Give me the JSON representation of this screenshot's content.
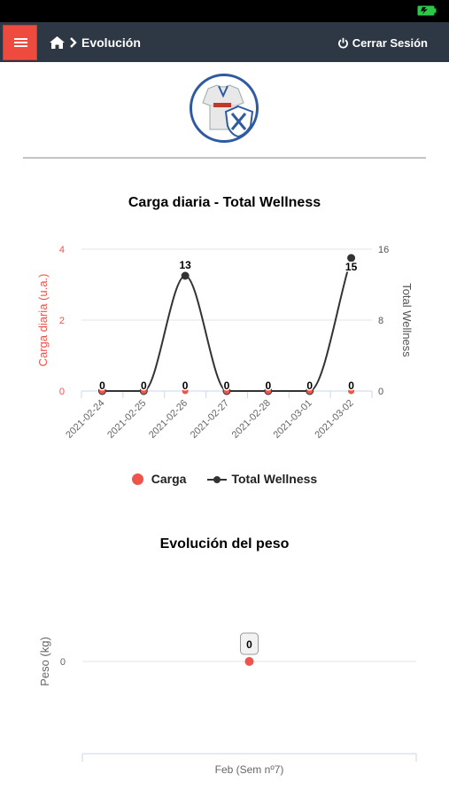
{
  "header": {
    "breadcrumb": "Evolución",
    "logout_label": "Cerrar Sesión"
  },
  "colors": {
    "navbar": "#2e3845",
    "menu_button": "#ee4b3e",
    "carga": "#f0534b",
    "wellness": "#333333"
  },
  "icons": [
    "menu-icon",
    "home-icon",
    "chevron-right-icon",
    "power-icon",
    "battery-icon"
  ],
  "charts": {
    "load_title": "Carga diaria - Total Wellness",
    "weight_title": "Evolución del peso"
  },
  "chart_data": [
    {
      "type": "line",
      "title": "Carga diaria - Total Wellness",
      "categories": [
        "2021-02-24",
        "2021-02-25",
        "2021-02-26",
        "2021-02-27",
        "2021-02-28",
        "2021-03-01",
        "2021-03-02"
      ],
      "y_left": {
        "label": "Carga diaria (u.a.)",
        "ticks": [
          "0",
          "2",
          "4"
        ],
        "range": [
          0,
          4
        ]
      },
      "y_right": {
        "label": "Total Wellness",
        "ticks": [
          "0",
          "8",
          "16"
        ],
        "range": [
          0,
          16
        ]
      },
      "series": [
        {
          "name": "Carga",
          "color": "#f0534b",
          "axis": "left",
          "values": [
            0,
            0,
            0,
            0,
            0,
            0,
            0
          ]
        },
        {
          "name": "Total Wellness",
          "color": "#333333",
          "axis": "right",
          "smooth": true,
          "values": [
            0,
            0,
            13,
            0,
            0,
            0,
            15
          ]
        }
      ],
      "data_labels": [
        "0",
        "0",
        "13",
        "0",
        "0",
        "0",
        "15"
      ],
      "carga_labels": [
        "0",
        "0",
        "0",
        "0",
        "0",
        "0",
        "0"
      ],
      "legend": "bottom-center",
      "grid": true
    },
    {
      "type": "scatter",
      "title": "Evolución del peso",
      "categories": [
        "Feb (Sem nº7)"
      ],
      "y": {
        "label": "Peso (kg)",
        "ticks": [
          "0"
        ]
      },
      "series": [
        {
          "color": "#f0534b",
          "values": [
            0
          ]
        }
      ],
      "data_labels": [
        "0"
      ]
    }
  ]
}
